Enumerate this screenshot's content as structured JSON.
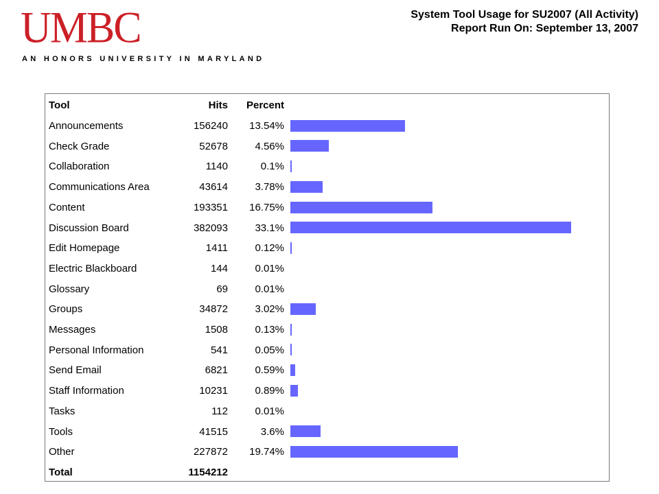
{
  "header": {
    "logo_text": "UMBC",
    "tagline": "AN HONORS UNIVERSITY IN MARYLAND",
    "report_title": "System Tool Usage for SU2007 (All Activity)",
    "report_run": "Report Run On: September 13, 2007"
  },
  "colors": {
    "logo": "#cc2027",
    "bar": "#6666ff",
    "frame_border": "#7a7a7a"
  },
  "chart_data": {
    "type": "bar",
    "orientation": "horizontal",
    "columns": [
      "Tool",
      "Hits",
      "Percent"
    ],
    "categories": [
      "Announcements",
      "Check Grade",
      "Collaboration",
      "Communications Area",
      "Content",
      "Discussion Board",
      "Edit Homepage",
      "Electric Blackboard",
      "Glossary",
      "Groups",
      "Messages",
      "Personal Information",
      "Send Email",
      "Staff Information",
      "Tasks",
      "Tools",
      "Other"
    ],
    "hits": [
      156240,
      52678,
      1140,
      43614,
      193351,
      382093,
      1411,
      144,
      69,
      34872,
      1508,
      541,
      6821,
      10231,
      112,
      41515,
      227872
    ],
    "percent_labels": [
      "13.54%",
      "4.56%",
      "0.1%",
      "3.78%",
      "16.75%",
      "33.1%",
      "0.12%",
      "0.01%",
      "0.01%",
      "3.02%",
      "0.13%",
      "0.05%",
      "0.59%",
      "0.89%",
      "0.01%",
      "3.6%",
      "19.74%"
    ],
    "values": [
      13.54,
      4.56,
      0.1,
      3.78,
      16.75,
      33.1,
      0.12,
      0.01,
      0.01,
      3.02,
      0.13,
      0.05,
      0.59,
      0.89,
      0.01,
      3.6,
      19.74
    ],
    "total_label": "Total",
    "total_hits": 1154212,
    "xlim": [
      0,
      33.1
    ]
  }
}
